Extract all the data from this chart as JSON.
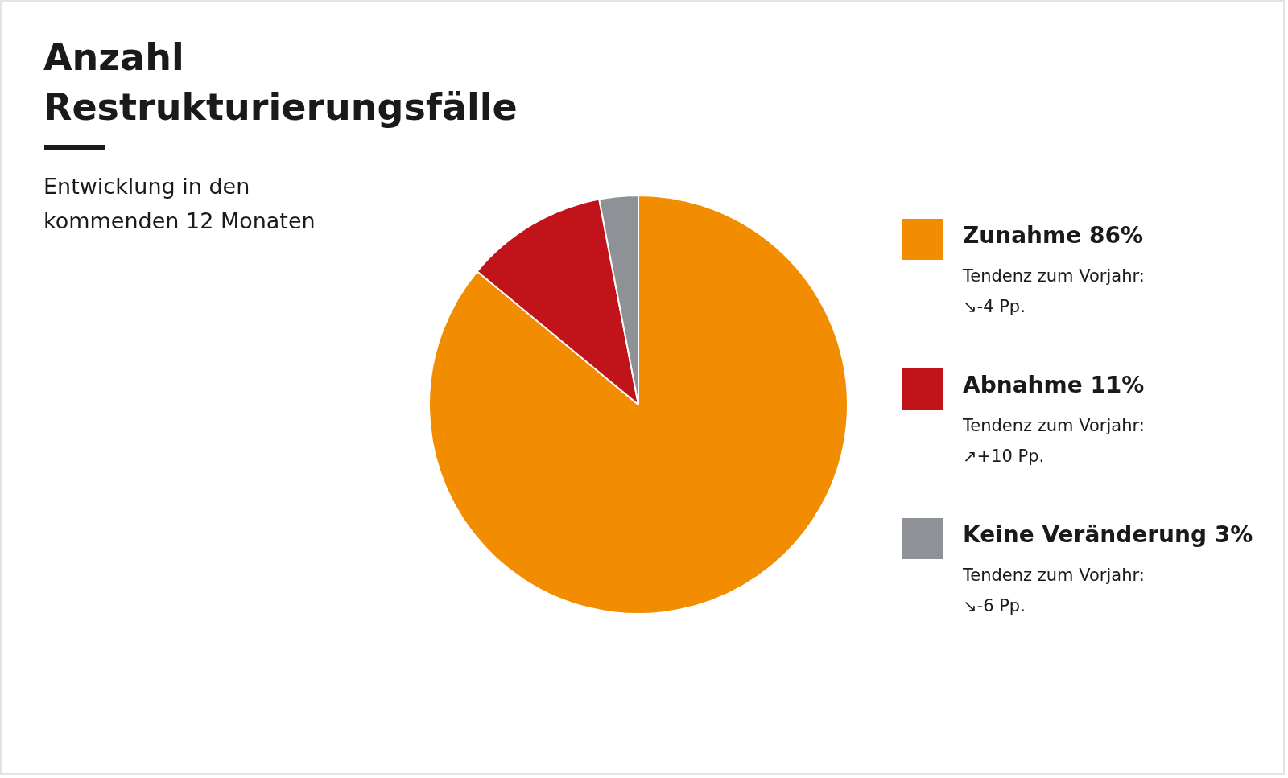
{
  "chart_data": {
    "type": "pie",
    "title": "Anzahl Restrukturierungsfälle",
    "subtitle": "Entwicklung in den kommenden 12 Monaten",
    "categories": [
      "Zunahme",
      "Abnahme",
      "Keine Veränderung"
    ],
    "values": [
      86,
      11,
      3
    ],
    "colors": [
      "#f28c00",
      "#c1131a",
      "#8e9297"
    ],
    "value_labels": [
      "86%",
      "11%",
      "3%"
    ],
    "annotations": [
      "Tendenz zum Vorjahr:\n↘-4 Pp.",
      "Tendenz zum Vorjahr:\n↗+10 Pp.",
      "Tendenz zum Vorjahr:\n↘-6 Pp."
    ],
    "legend": "right"
  }
}
